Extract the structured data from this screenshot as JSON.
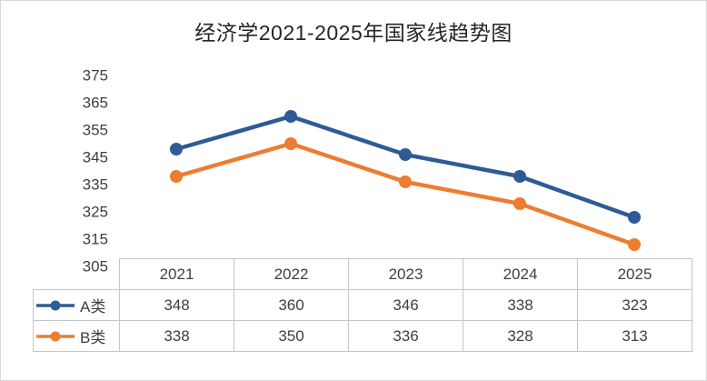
{
  "title": "经济学2021-2025年国家线趋势图",
  "chart_data": {
    "type": "line",
    "title": "经济学2021-2025年国家线趋势图",
    "categories": [
      "2021",
      "2022",
      "2023",
      "2024",
      "2025"
    ],
    "series": [
      {
        "name": "A类",
        "values": [
          348,
          360,
          346,
          338,
          323
        ],
        "color": "#2f5b94"
      },
      {
        "name": "B类",
        "values": [
          338,
          350,
          336,
          328,
          313
        ],
        "color": "#ed7d31"
      }
    ],
    "ylim": [
      305,
      375
    ],
    "ytick_step": 10,
    "yticks": [
      375,
      365,
      355,
      345,
      335,
      325,
      315,
      305
    ],
    "grid": false,
    "legend_position": "table-rows-left",
    "marker": "circle",
    "colors": {
      "series_a": "#2f5b94",
      "series_b": "#ed7d31",
      "text": "#404040",
      "table_border": "#c6c6c6"
    }
  }
}
